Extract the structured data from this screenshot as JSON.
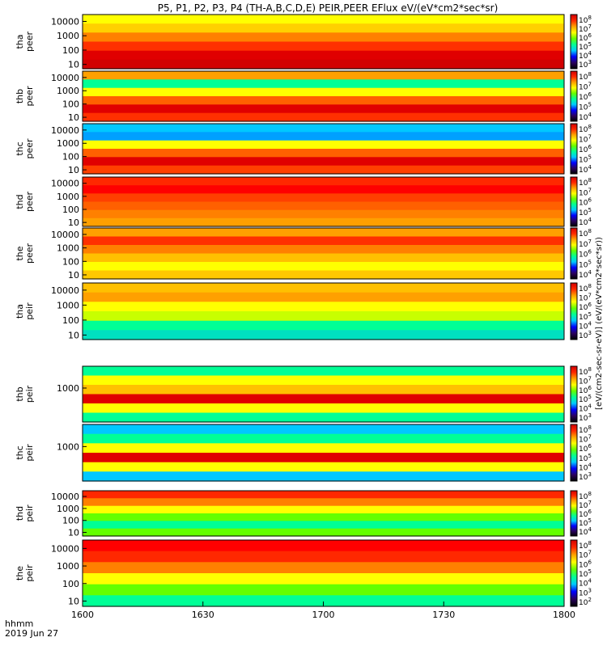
{
  "chart_data": {
    "type": "heatmap",
    "title": "P5, P1, P2, P3, P4 (TH-A,B,C,D,E) PEIR,PEER EFlux eV/(eV*cm2*sec*sr)",
    "x_ticks": [
      "1600",
      "1630",
      "1700",
      "1730",
      "1800"
    ],
    "x_axis_labels": [
      "hhmm",
      "2019 Jun 27"
    ],
    "xlim": [
      "16:00",
      "18:00"
    ],
    "colorbar_label": "[eV/(cm2-sec-sr-eV)] (eV/(eV*cm2*sec*sr))",
    "colorbar_tick_exponents": [
      "8",
      "7",
      "6",
      "5",
      "4",
      "3",
      "2"
    ],
    "colormap": [
      "#000000",
      "#2a0060",
      "#0000ff",
      "#00c8ff",
      "#00ff96",
      "#64ff00",
      "#ffff00",
      "#ffa000",
      "#ff2800",
      "#d20000"
    ],
    "panels": [
      {
        "name": "tha-peer",
        "label_top": "tha",
        "label_bottom": "peer",
        "yscale": "log",
        "ylim": [
          5,
          30000
        ],
        "yticks": [
          "10000",
          "1000",
          "100",
          "10"
        ],
        "grid": false
      },
      {
        "name": "thb-peer",
        "label_top": "thb",
        "label_bottom": "peer",
        "yscale": "log",
        "ylim": [
          5,
          30000
        ],
        "yticks": [
          "10000",
          "1000",
          "100",
          "10"
        ],
        "grid": false
      },
      {
        "name": "thc-peer",
        "label_top": "thc",
        "label_bottom": "peer",
        "yscale": "log",
        "ylim": [
          5,
          30000
        ],
        "yticks": [
          "10000",
          "1000",
          "100",
          "10"
        ],
        "grid": false
      },
      {
        "name": "thd-peer",
        "label_top": "thd",
        "label_bottom": "peer",
        "yscale": "log",
        "ylim": [
          5,
          30000
        ],
        "yticks": [
          "10000",
          "1000",
          "100",
          "10"
        ],
        "grid": false
      },
      {
        "name": "the-peer",
        "label_top": "the",
        "label_bottom": "peer",
        "yscale": "log",
        "ylim": [
          5,
          30000
        ],
        "yticks": [
          "10000",
          "1000",
          "100",
          "10"
        ],
        "grid": false
      },
      {
        "name": "tha-peir",
        "label_top": "tha",
        "label_bottom": "peir",
        "yscale": "log",
        "ylim": [
          5,
          30000
        ],
        "yticks": [
          "10000",
          "1000",
          "100",
          "10"
        ],
        "grid": false
      },
      {
        "name": "thb-peir",
        "label_top": "thb",
        "label_bottom": "peir",
        "yscale": "log",
        "ylim": [
          5,
          30000
        ],
        "yticks": [
          "1000"
        ],
        "grid": false
      },
      {
        "name": "thc-peir",
        "label_top": "thc",
        "label_bottom": "peir",
        "yscale": "log",
        "ylim": [
          5,
          30000
        ],
        "yticks": [
          "1000"
        ],
        "grid": false
      },
      {
        "name": "thd-peir",
        "label_top": "thd",
        "label_bottom": "peir",
        "yscale": "log",
        "ylim": [
          5,
          30000
        ],
        "yticks": [
          "10000",
          "1000",
          "100",
          "10"
        ],
        "grid": false
      },
      {
        "name": "the-peir",
        "label_top": "the",
        "label_bottom": "peir",
        "yscale": "log",
        "ylim": [
          5,
          30000
        ],
        "yticks": [
          "10000",
          "1000",
          "100",
          "10"
        ],
        "grid": false
      }
    ]
  }
}
